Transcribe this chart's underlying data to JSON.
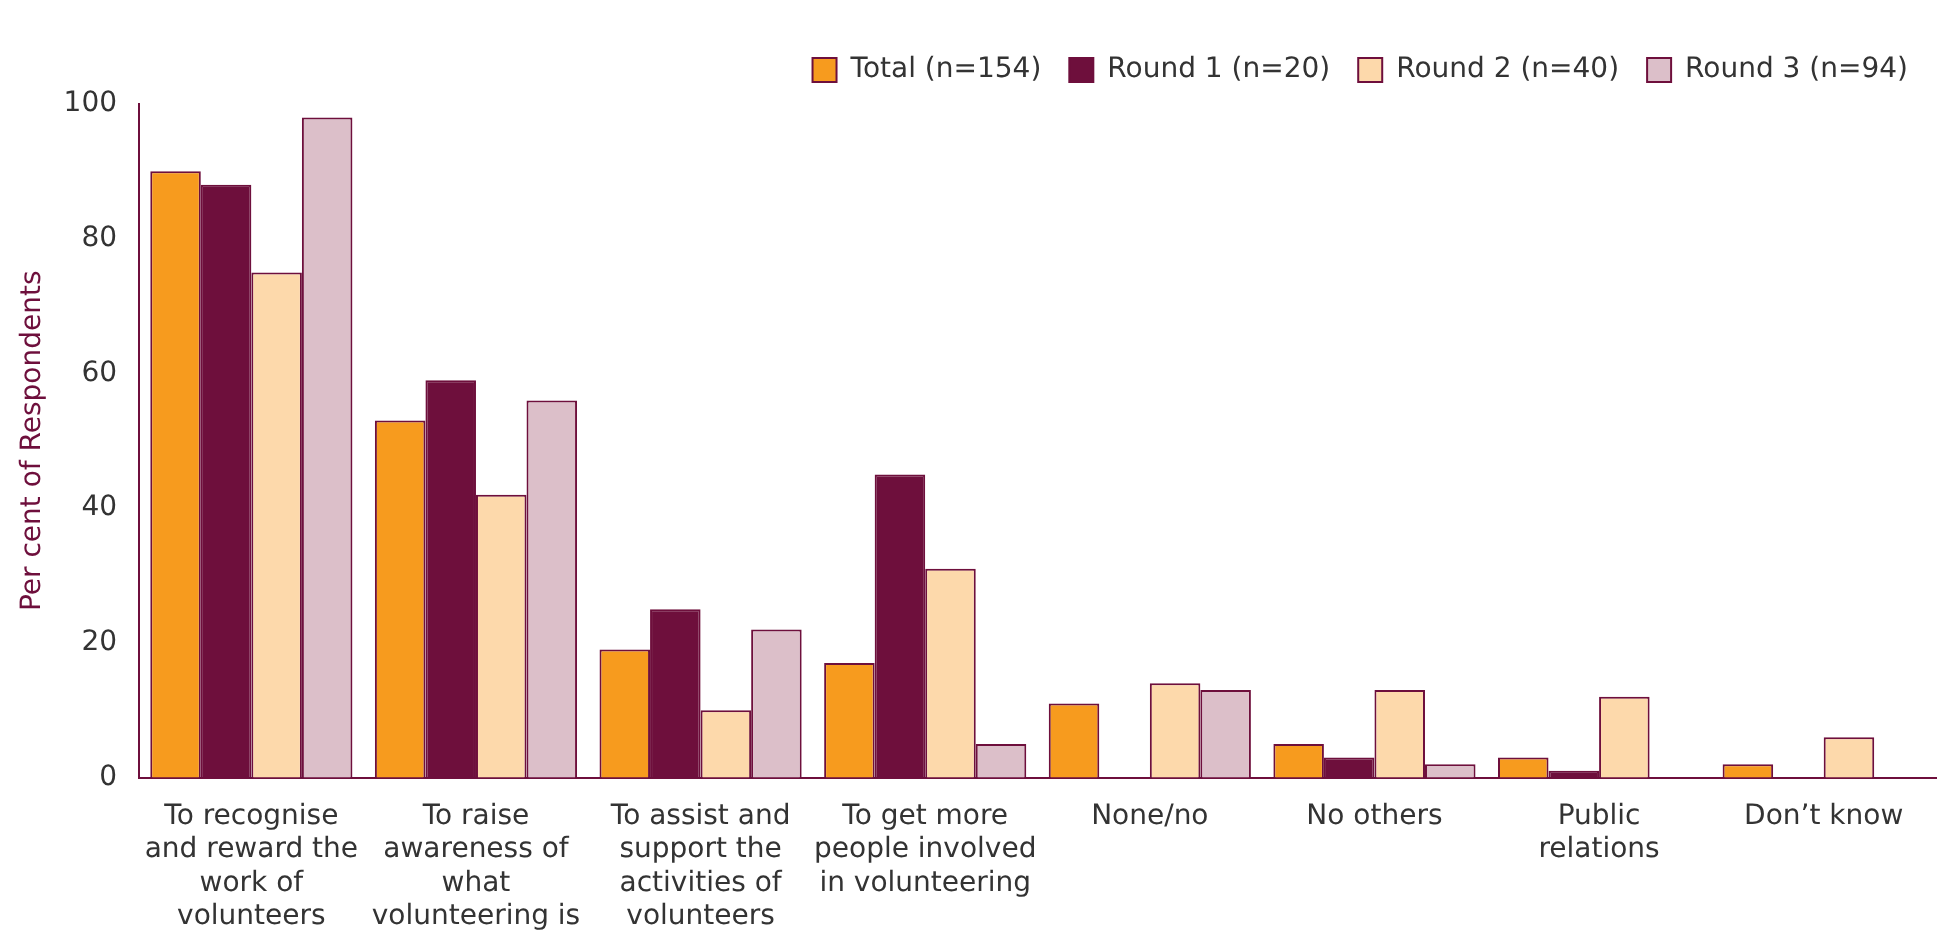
{
  "chart_data": {
    "type": "bar",
    "ylabel": "Per cent of Respondents",
    "categories": [
      "To recognise and reward the work of volunteers",
      "To raise awareness of what volunteering is",
      "To assist and support the activities of volunteers",
      "To get more people involved in volunteering",
      "None/no",
      "No others",
      "Public relations",
      "Don’t know"
    ],
    "series": [
      {
        "name": "Total (n=154)",
        "color": "#f79b1e",
        "values": [
          90,
          53,
          19,
          17,
          11,
          5,
          3,
          2
        ]
      },
      {
        "name": "Round 1 (n=20)",
        "color": "#6e0f3c",
        "values": [
          88,
          59,
          25,
          45,
          0,
          3,
          1,
          0
        ]
      },
      {
        "name": "Round 2 (n=40)",
        "color": "#fdd9ab",
        "values": [
          75,
          42,
          10,
          31,
          14,
          13,
          12,
          6
        ]
      },
      {
        "name": "Round 3 (n=94)",
        "color": "#dcbfc9",
        "values": [
          98,
          56,
          22,
          5,
          13,
          2,
          0,
          0
        ]
      }
    ],
    "ylim": [
      0,
      100
    ],
    "yticks": [
      0,
      20,
      40,
      60,
      80,
      100
    ],
    "grid": false,
    "legend": "top right"
  }
}
